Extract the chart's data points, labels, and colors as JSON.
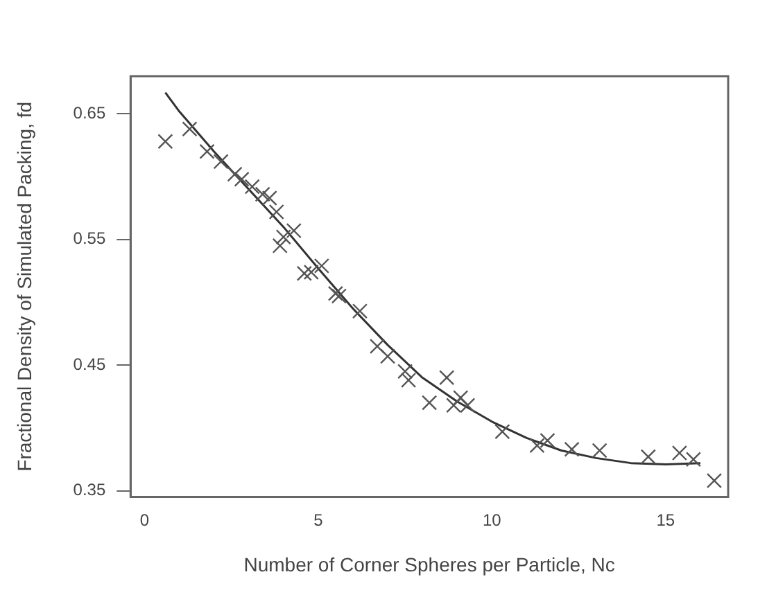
{
  "chart_data": {
    "type": "scatter",
    "xlabel": "Number of Corner Spheres per Particle, Nc",
    "ylabel": "Fractional Density of Simulated Packing, fd",
    "xlim": [
      -0.4,
      16.8
    ],
    "ylim": [
      0.345,
      0.68
    ],
    "xticks": [
      0,
      5,
      10,
      15
    ],
    "yticks": [
      0.35,
      0.45,
      0.55,
      0.65
    ],
    "grid": false,
    "legend": false,
    "marker": "cross",
    "series": [
      {
        "color": "#555555",
        "x": [
          0.6,
          1.3,
          1.8,
          2.2,
          2.6,
          2.8,
          3.1,
          3.4,
          3.6,
          3.8,
          3.9,
          4.0,
          4.3,
          4.6,
          4.8,
          5.1,
          5.5,
          5.6,
          6.2,
          6.7,
          7.0,
          7.5,
          7.6,
          8.2,
          8.7,
          8.9,
          9.1,
          9.3,
          10.3,
          11.3,
          11.6,
          12.3,
          13.1,
          14.5,
          15.4,
          15.8,
          16.4
        ],
        "values": [
          0.628,
          0.638,
          0.62,
          0.612,
          0.602,
          0.598,
          0.592,
          0.586,
          0.583,
          0.572,
          0.545,
          0.552,
          0.557,
          0.523,
          0.524,
          0.529,
          0.507,
          0.505,
          0.493,
          0.465,
          0.457,
          0.445,
          0.438,
          0.42,
          0.44,
          0.418,
          0.424,
          0.418,
          0.397,
          0.386,
          0.39,
          0.383,
          0.382,
          0.377,
          0.38,
          0.375,
          0.358
        ]
      },
      {
        "type": "line",
        "color": "#333333",
        "marker": "none",
        "line_style": "solid",
        "x": [
          0.6,
          1,
          2,
          3,
          4,
          5,
          6,
          7,
          8,
          9,
          10,
          11,
          12,
          13,
          14,
          15,
          16
        ],
        "values": [
          0.667,
          0.652,
          0.62,
          0.59,
          0.56,
          0.527,
          0.495,
          0.466,
          0.44,
          0.421,
          0.405,
          0.392,
          0.382,
          0.376,
          0.372,
          0.371,
          0.372
        ]
      }
    ]
  }
}
